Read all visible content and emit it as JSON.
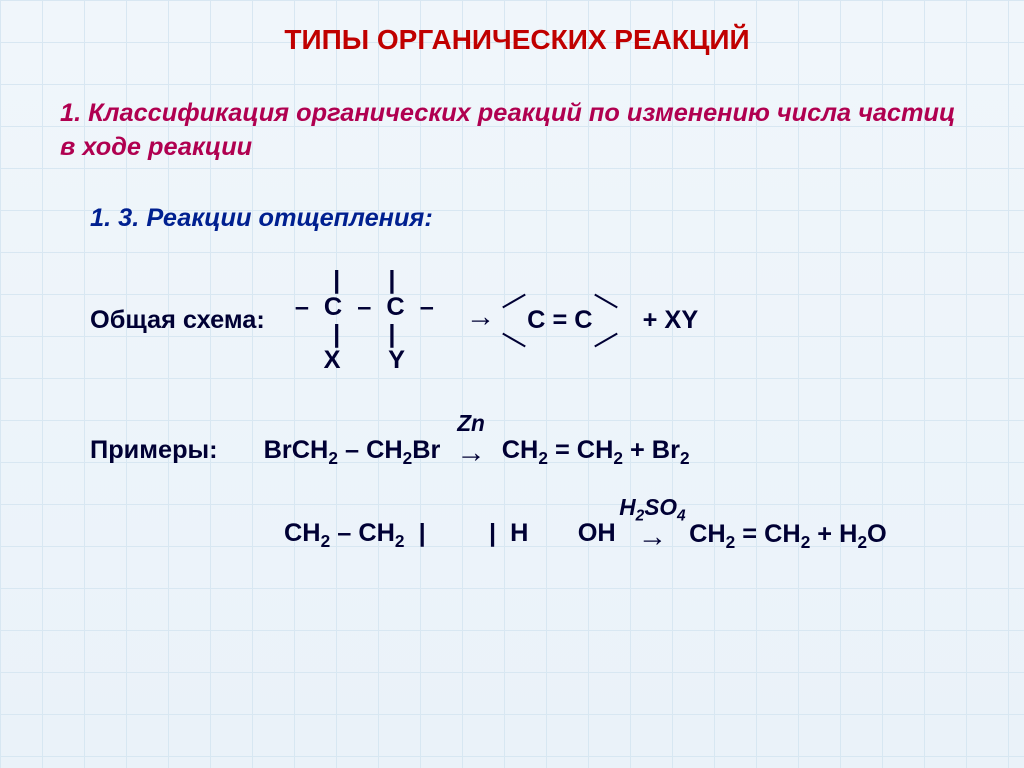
{
  "colors": {
    "title": "#c00000",
    "section": "#b00050",
    "subhead": "#002090",
    "body": "#000034",
    "bg_top": "#f0f6fb",
    "bg_bottom": "#eaf2f9",
    "grid": "#d6e6f2"
  },
  "fontsizes": {
    "title_pt": 21,
    "section_pt": 19,
    "body_pt": 19,
    "annotation_pt": 17
  },
  "title": "ТИПЫ ОРГАНИЧЕСКИХ РЕАКЦИЙ",
  "section": {
    "num": "1.",
    "text": "Классификация органических реакций по изменению числа частиц в ходе реакции"
  },
  "subhead": "1. 3. Реакции отщепления:",
  "scheme": {
    "label": "Общая схема:",
    "reactant_rows": [
      "|    |",
      "– С – С –",
      "|    |",
      "X    Y"
    ],
    "arrow": "→",
    "product_center": "С = С",
    "plus_xy": "+   XY"
  },
  "examples_label": "Примеры:",
  "example1": {
    "lhs": "BrCH₂ – CH₂Br",
    "annotation": "Zn",
    "arrow": "→",
    "rhs": "CH₂ = CH₂ + Br₂"
  },
  "example2": {
    "lhs_line1": "CH₂ – CH₂",
    "lhs_line2": " |         |",
    "lhs_line3": " H       OH",
    "annotation": "H₂SO₄",
    "arrow": "→",
    "rhs": "CH₂ = CH₂ + H₂O"
  }
}
